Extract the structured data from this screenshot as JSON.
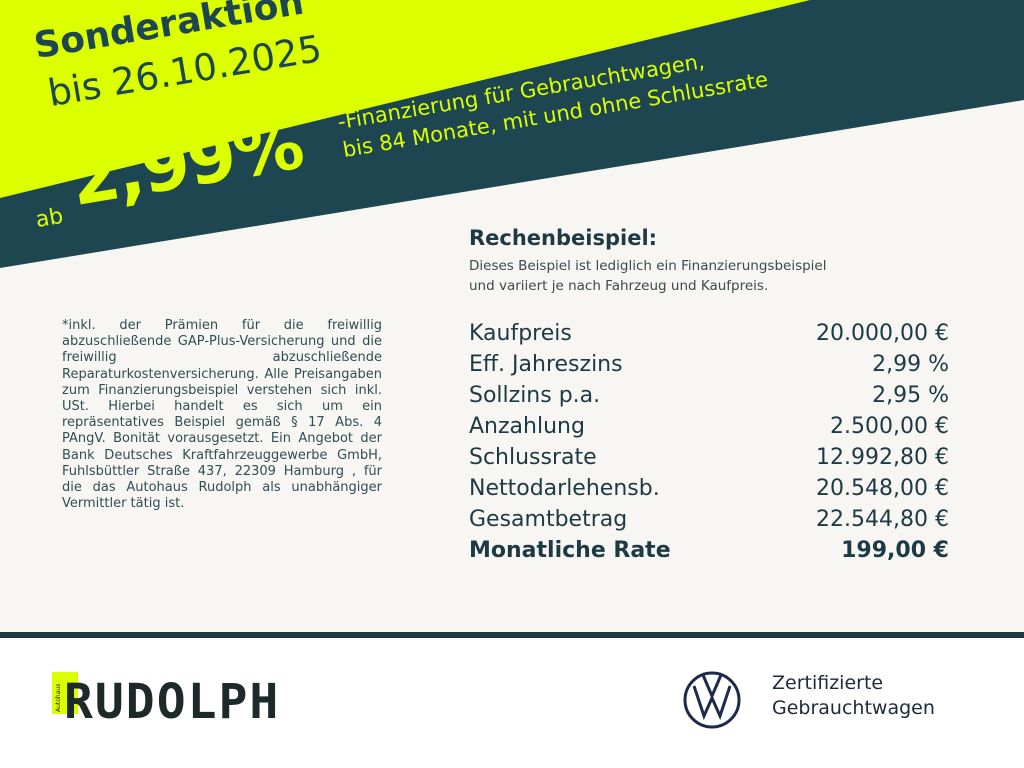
{
  "colors": {
    "lime": "#dcff00",
    "dark_teal": "#1d4650",
    "background": "#f8f6f2"
  },
  "promo": {
    "title": "Sonderaktion",
    "date": "bis 26.10.2025",
    "prefix": "ab",
    "rate": "2,99%",
    "asterisk": "*",
    "line1": "-Finanzierung für Gebrauchtwagen,",
    "line2": "bis 84 Monate, mit und ohne Schlussrate"
  },
  "example": {
    "heading": "Rechenbeispiel:",
    "line1": "Dieses Beispiel ist lediglich ein Finanzierungsbeispiel",
    "line2": "und variiert je nach Fahrzeug und Kaufpreis.",
    "rows": [
      {
        "label": "Kaufpreis",
        "value": "20.000,00 €"
      },
      {
        "label": "Eff. Jahreszins",
        "value": "2,99 %"
      },
      {
        "label": "Sollzins p.a.",
        "value": "2,95 %"
      },
      {
        "label": "Anzahlung",
        "value": "2.500,00 €"
      },
      {
        "label": "Schlussrate",
        "value": "12.992,80 €"
      },
      {
        "label": "Nettodarlehensb.",
        "value": "20.548,00 €"
      },
      {
        "label": "Gesamtbetrag",
        "value": "22.544,80 €"
      },
      {
        "label": "Monatliche Rate",
        "value": "199,00 €"
      }
    ]
  },
  "fineprint": "*inkl. der Prämien für die freiwillig abzuschließende GAP-Plus-Versicherung und die freiwillig abzuschließende Reparaturkostenversicherung. Alle Preisangaben zum Finanzierungsbeispiel verstehen sich inkl. USt. Hierbei handelt es sich um ein repräsentatives Beispiel gemäß § 17 Abs. 4 PAngV. Bonität vorausgesetzt. Ein Angebot der Bank Deutsches Kraftfahrzeuggewerbe GmbH, Fuhlsbüttler Straße 437, 22309 Hamburg , für die das Autohaus Rudolph als unabhängiger Vermittler tätig ist.",
  "footer": {
    "logo_small": "Autohaus",
    "logo_text": "RUDOLPH",
    "vw_icon": "vw-logo",
    "vw_line1": "Zertifizierte",
    "vw_line2": "Gebrauchtwagen"
  }
}
